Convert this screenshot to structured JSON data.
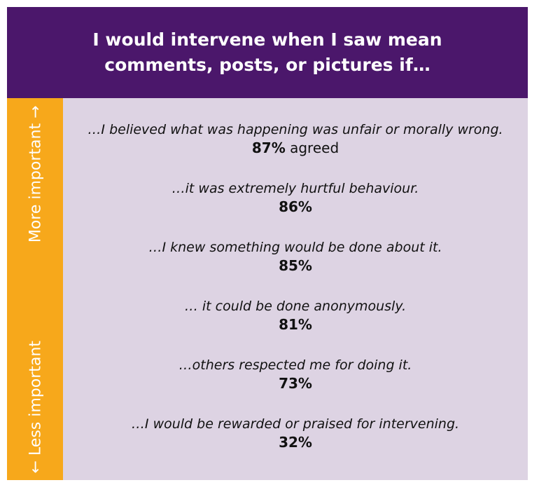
{
  "header": {
    "title": "I would intervene when I saw mean comments, posts, or pictures if…"
  },
  "scale": {
    "top": "More important →",
    "bottom": "← Less important"
  },
  "items": [
    {
      "text": "…I believed what was happening was unfair or morally wrong.",
      "value": "87%",
      "note": "agreed"
    },
    {
      "text": "…it was extremely hurtful behaviour.",
      "value": "86%"
    },
    {
      "text": "…I knew something would be done about it.",
      "value": "85%"
    },
    {
      "text": "… it could be done anonymously.",
      "value": "81%"
    },
    {
      "text": "…others respected me for doing it.",
      "value": "73%"
    },
    {
      "text": "…I would be rewarded or praised for intervening.",
      "value": "32%"
    }
  ]
}
